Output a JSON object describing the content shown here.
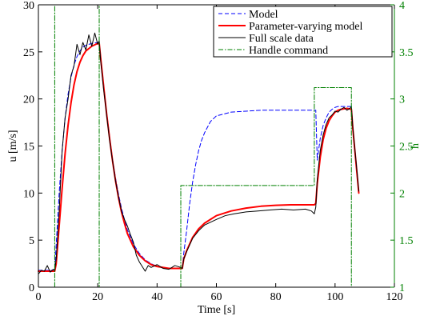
{
  "chart_data": {
    "type": "line",
    "title": "",
    "xlabel": "Time [s]",
    "ylabel": "u [m/s]",
    "y2label": "h",
    "xlim": [
      0,
      120
    ],
    "ylim": [
      0,
      30
    ],
    "y2lim": [
      1,
      4
    ],
    "xticks": [
      0,
      20,
      40,
      60,
      80,
      100,
      120
    ],
    "yticks": [
      0,
      5,
      10,
      15,
      20,
      25,
      30
    ],
    "y2ticks": [
      1,
      1.5,
      2,
      2.5,
      3,
      3.5,
      4
    ],
    "grid": false,
    "legend_position": "top-right",
    "colors": {
      "left_axis": "#000000",
      "right_axis": "#008000"
    },
    "series": [
      {
        "name": "Model",
        "axis": "left",
        "color": "#0000ff",
        "dash": "5,3",
        "width": 1,
        "x": [
          0,
          5.5,
          6,
          7,
          8,
          9,
          10,
          11,
          12,
          13,
          14,
          15,
          16,
          18,
          20,
          20.5,
          21,
          22,
          23,
          24,
          25,
          26,
          27,
          28,
          29,
          30,
          32,
          34,
          36,
          38,
          40,
          44,
          48,
          48.5,
          49,
          50,
          51,
          52,
          53,
          54,
          55,
          56,
          58,
          60,
          65,
          70,
          75,
          80,
          85,
          90,
          93,
          93.5,
          94,
          95,
          96,
          97,
          98,
          99,
          100,
          101,
          102,
          104,
          105.5,
          106,
          107,
          108
        ],
        "y": [
          1.8,
          1.8,
          4.5,
          10,
          14.5,
          18,
          20.5,
          22.3,
          23.6,
          24.5,
          25.1,
          25.5,
          25.7,
          25.9,
          26,
          26,
          24.5,
          21.5,
          18.6,
          16,
          13.6,
          11.6,
          9.9,
          8.4,
          7.2,
          6.1,
          4.6,
          3.6,
          2.9,
          2.5,
          2.2,
          2.0,
          2.0,
          2.0,
          3.6,
          6.1,
          8.9,
          11.2,
          13.0,
          14.5,
          15.6,
          16.4,
          17.6,
          18.2,
          18.6,
          18.7,
          18.8,
          18.8,
          18.8,
          18.8,
          18.8,
          18.8,
          13.5,
          15.8,
          17.2,
          18.0,
          18.6,
          18.9,
          19.1,
          19.2,
          19.2,
          19.2,
          19.2,
          17.0,
          13.5,
          10.0
        ]
      },
      {
        "name": "Parameter-varying model",
        "axis": "left",
        "color": "#ff0000",
        "dash": "",
        "width": 2,
        "x": [
          0,
          5.5,
          6,
          7,
          8,
          9,
          10,
          11,
          12,
          13,
          14,
          15,
          16,
          18,
          20,
          20.5,
          21,
          22,
          23,
          24,
          25,
          26,
          27,
          28,
          29,
          30,
          32,
          34,
          36,
          38,
          40,
          44,
          48,
          48.5,
          49,
          50,
          52,
          54,
          56,
          58,
          60,
          65,
          70,
          75,
          80,
          85,
          90,
          93,
          93.5,
          94,
          95,
          96,
          97,
          98,
          99,
          100,
          101,
          102,
          104,
          105.5,
          106,
          107,
          108
        ],
        "y": [
          1.7,
          1.7,
          2.5,
          6.5,
          10.5,
          14.2,
          17.2,
          19.6,
          21.5,
          22.9,
          23.9,
          24.6,
          25.1,
          25.6,
          25.9,
          25.9,
          24.3,
          21.3,
          18.4,
          15.8,
          13.4,
          11.3,
          9.5,
          8.0,
          6.8,
          5.7,
          4.3,
          3.4,
          2.8,
          2.4,
          2.2,
          2.0,
          2.0,
          2.0,
          3.0,
          3.9,
          5.3,
          6.2,
          6.8,
          7.2,
          7.6,
          8.1,
          8.4,
          8.6,
          8.7,
          8.75,
          8.75,
          8.75,
          8.9,
          11.0,
          13.8,
          15.7,
          16.9,
          17.7,
          18.2,
          18.6,
          18.8,
          18.9,
          19.0,
          18.9,
          16.8,
          13.4,
          10.0
        ]
      },
      {
        "name": "Full scale data",
        "axis": "left",
        "color": "#000000",
        "dash": "",
        "width": 1,
        "x": [
          0,
          1,
          2,
          3,
          4,
          5,
          5.5,
          6,
          7,
          8,
          9,
          10,
          11,
          12,
          13,
          14,
          15,
          16,
          17,
          18,
          19,
          20,
          20.5,
          21,
          22,
          23,
          24,
          25,
          26,
          27,
          28,
          29,
          30,
          31,
          32,
          33,
          34,
          35,
          36,
          37,
          38,
          40,
          42,
          44,
          46,
          48,
          48.5,
          49,
          50,
          52,
          54,
          56,
          58,
          60,
          63,
          66,
          70,
          74,
          78,
          82,
          86,
          90,
          92,
          93,
          93.5,
          94,
          95,
          96,
          97,
          98,
          99,
          100,
          101,
          102,
          103,
          104,
          105,
          105.5,
          106,
          107,
          108
        ],
        "y": [
          1.4,
          1.8,
          1.7,
          2.3,
          1.6,
          1.9,
          1.8,
          3.0,
          8.0,
          14.5,
          18.0,
          20.0,
          22.5,
          23.5,
          25.8,
          24.7,
          26.0,
          25.2,
          26.8,
          25.6,
          27.0,
          25.8,
          26.2,
          24.0,
          21.0,
          18.3,
          15.6,
          13.4,
          11.3,
          9.6,
          8.1,
          7.2,
          6.5,
          5.6,
          4.8,
          3.4,
          2.7,
          2.2,
          1.7,
          2.3,
          2.1,
          2.4,
          2.0,
          1.9,
          2.3,
          2.1,
          2.0,
          3.0,
          3.8,
          5.2,
          6.0,
          6.6,
          6.9,
          7.2,
          7.6,
          7.8,
          8.0,
          8.1,
          8.2,
          8.3,
          8.2,
          8.3,
          8.1,
          7.8,
          8.5,
          11.5,
          14.5,
          16.2,
          17.3,
          18.0,
          18.3,
          18.7,
          18.6,
          18.9,
          19.1,
          18.8,
          19.0,
          19.2,
          16.9,
          13.6,
          10.2
        ]
      },
      {
        "name": "Handle command",
        "axis": "right",
        "color": "#008000",
        "dash": "6,2,1.5,2",
        "width": 1,
        "x": [
          5.5,
          5.5,
          20.5,
          20.5,
          48,
          48,
          93,
          93,
          105.5,
          105.5
        ],
        "y": [
          1,
          4,
          4,
          1,
          1,
          2.08,
          2.08,
          3.12,
          3.12,
          1
        ]
      }
    ]
  }
}
